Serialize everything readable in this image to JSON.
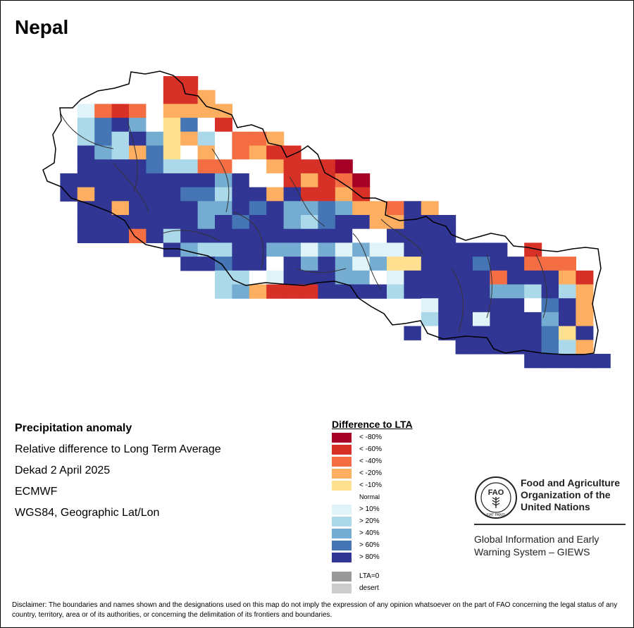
{
  "country": "Nepal",
  "info": {
    "title": "Precipitation anomaly",
    "line1": "Relative difference to Long Term Average",
    "line2": "Dekad 2 April 2025",
    "line3": "ECMWF",
    "line4": "WGS84, Geographic Lat/Lon"
  },
  "legend": {
    "title": "Difference to LTA",
    "items": [
      {
        "label": "< -80%",
        "color": "#A50026"
      },
      {
        "label": "< -60%",
        "color": "#D73027"
      },
      {
        "label": "< -40%",
        "color": "#F46D43"
      },
      {
        "label": "< -20%",
        "color": "#FDAE61"
      },
      {
        "label": "< -10%",
        "color": "#FEE090"
      },
      {
        "label": "Normal",
        "color": "#FFFFFF"
      },
      {
        "label": "> 10%",
        "color": "#E0F3F8"
      },
      {
        "label": "> 20%",
        "color": "#ABD9E9"
      },
      {
        "label": "> 40%",
        "color": "#74ADD1"
      },
      {
        "label": "> 60%",
        "color": "#4575B4"
      },
      {
        "label": "> 80%",
        "color": "#313695"
      }
    ],
    "extra": [
      {
        "label": "LTA=0",
        "color": "#999999"
      },
      {
        "label": "desert",
        "color": "#CCCCCC"
      }
    ]
  },
  "org": {
    "name_line1": "Food and Agriculture",
    "name_line2": "Organization of the",
    "name_line3": "United Nations",
    "logo_text": "FAO",
    "logo_motto": "FIAT PANIS",
    "system_line1": "Global Information and Early",
    "system_line2": "Warning System – GIEWS"
  },
  "disclaimer": "Disclaimer: The boundaries and names shown and the designations used on this map do not imply the expression of any opinion whatsoever on the part of FAO concerning the legal status of any country, territory, area or of its authorities, or concerning the delimitation of its frontiers and boundaries.",
  "grid": {
    "codes": "a=< -80%, b=< -60%, c=< -40%, d=< -20%, e=< -10%, n=Normal, f=> 10%, g=> 20%, h=> 40%, i=> 60%, j=> 80%, .=no data",
    "rows": [
      ".......bb.......................",
      ".......bbd......................",
      "..fcbcndddd.....................",
      "..gijhneinb.....................",
      "..gigjhedgnccd..................",
      "..jhgdiendncdbb.................",
      "..jjjjiggccnndbbba..............",
      ".jjjjjjjjjhjnnbdbca.............",
      ".jdjjjjjiigjjdjbbdb.............",
      "..jjdjjjjhhjijhhihddcjd.........",
      "..jjjjjjjhjijjhgijjddjjj........",
      "..jjjcjgjjjjjjjjjjnnjjjj........",
      ".......jhggjjhhfhfhffjjjjjj.b...",
      "........jjijjnjhjhfheejjjijjccc.",
      "..........ggnfjjjhhnfjjjjjcjjjdb",
      "..........ghdbbbjjjjgjjjjjhhgjgd",
      "......................fjjjjjnijd",
      "......................gjjfjjjhjd",
      ".....................jnjjjjjjiej",
      "........................jjjjjigd",
      "............................jjjjj"
    ]
  }
}
